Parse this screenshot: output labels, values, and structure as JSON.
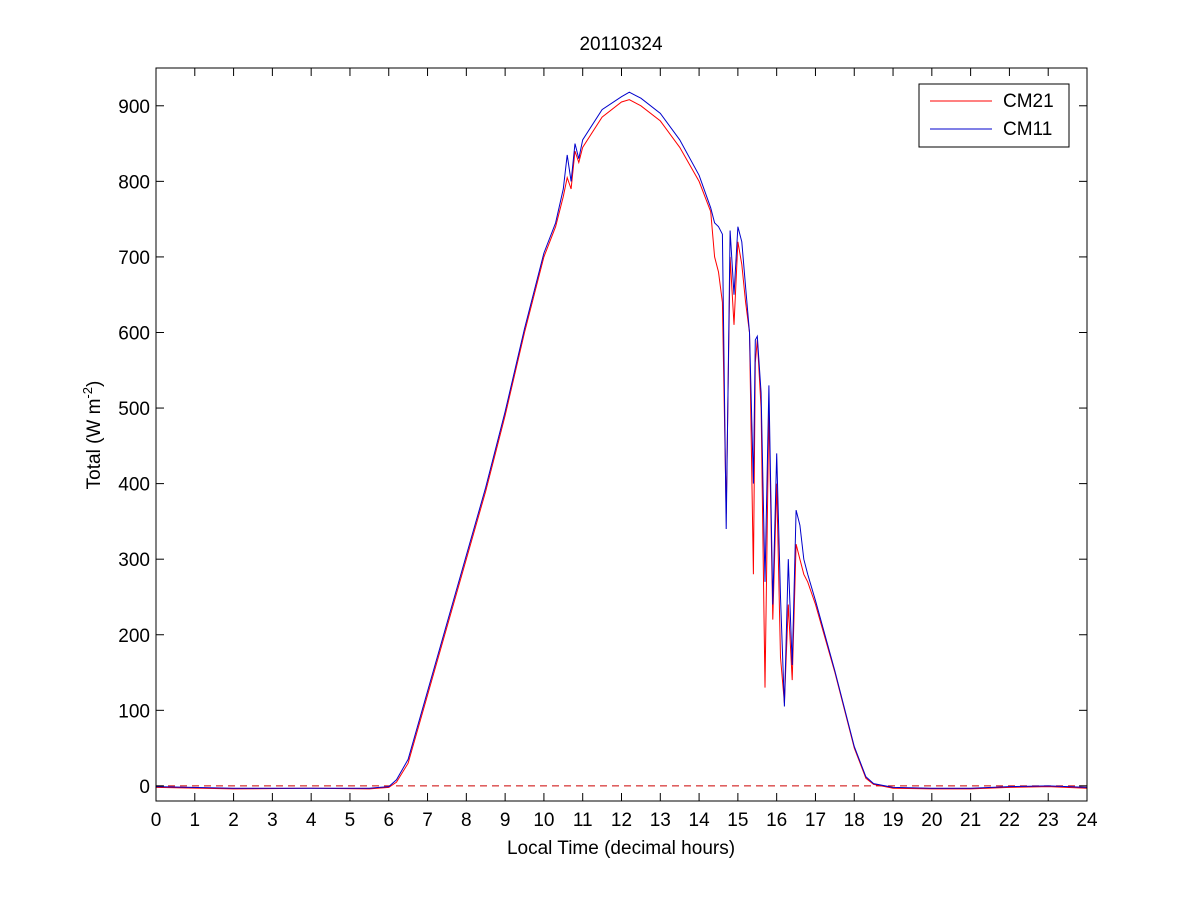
{
  "chart_data": {
    "type": "line",
    "title": "20110324",
    "xlabel": "Local Time (decimal hours)",
    "ylabel": {
      "prefix": "Total (W m",
      "exponent": "-2",
      "suffix": ")"
    },
    "xlim": [
      0,
      24
    ],
    "ylim": [
      -20,
      950
    ],
    "xticks": [
      "0",
      "1",
      "2",
      "3",
      "4",
      "5",
      "6",
      "7",
      "8",
      "9",
      "10",
      "11",
      "12",
      "13",
      "14",
      "15",
      "16",
      "17",
      "18",
      "19",
      "20",
      "21",
      "22",
      "23",
      "24"
    ],
    "yticks": [
      "0",
      "100",
      "200",
      "300",
      "400",
      "500",
      "600",
      "700",
      "800",
      "900"
    ],
    "grid": false,
    "legend_position": "top-right",
    "reference_line": {
      "y": 0,
      "style": "dashed",
      "color": "#cc0000"
    },
    "series": [
      {
        "name": "CM21",
        "color": "#ff0000",
        "x": [
          0,
          2,
          4,
          5.5,
          6.0,
          6.2,
          6.5,
          7,
          7.5,
          8,
          8.5,
          9,
          9.5,
          10,
          10.3,
          10.5,
          10.6,
          10.7,
          10.8,
          10.9,
          11,
          11.5,
          12,
          12.2,
          12.5,
          13,
          13.5,
          14,
          14.3,
          14.4,
          14.5,
          14.6,
          14.7,
          14.8,
          14.9,
          15.0,
          15.1,
          15.2,
          15.3,
          15.4,
          15.45,
          15.5,
          15.6,
          15.7,
          15.8,
          15.9,
          16.0,
          16.1,
          16.2,
          16.3,
          16.4,
          16.5,
          16.6,
          16.7,
          16.8,
          17,
          17.5,
          18,
          18.3,
          18.5,
          19,
          20,
          21,
          22,
          23,
          24
        ],
        "y": [
          -2,
          -4,
          -3,
          -4,
          -2,
          5,
          30,
          120,
          210,
          300,
          390,
          490,
          600,
          700,
          740,
          780,
          805,
          790,
          840,
          825,
          845,
          885,
          905,
          908,
          900,
          880,
          845,
          800,
          760,
          700,
          680,
          640,
          360,
          700,
          610,
          720,
          690,
          640,
          600,
          280,
          560,
          590,
          500,
          130,
          500,
          220,
          400,
          170,
          110,
          240,
          140,
          320,
          300,
          280,
          270,
          240,
          150,
          50,
          10,
          2,
          -3,
          -4,
          -4,
          -2,
          -1,
          -3
        ]
      },
      {
        "name": "CM11",
        "color": "#0000cc",
        "x": [
          0,
          2,
          4,
          5.5,
          6.0,
          6.2,
          6.5,
          7,
          7.5,
          8,
          8.5,
          9,
          9.5,
          10,
          10.3,
          10.5,
          10.6,
          10.7,
          10.8,
          10.9,
          11,
          11.5,
          12,
          12.2,
          12.5,
          13,
          13.5,
          14,
          14.3,
          14.4,
          14.5,
          14.6,
          14.7,
          14.8,
          14.9,
          15.0,
          15.1,
          15.2,
          15.3,
          15.4,
          15.45,
          15.5,
          15.6,
          15.7,
          15.8,
          15.9,
          16.0,
          16.1,
          16.2,
          16.3,
          16.4,
          16.5,
          16.6,
          16.7,
          16.8,
          17,
          17.5,
          18,
          18.3,
          18.5,
          19,
          20,
          21,
          22,
          23,
          24
        ],
        "y": [
          -1,
          -3,
          -3,
          -3,
          -1,
          8,
          35,
          125,
          215,
          305,
          395,
          495,
          605,
          705,
          745,
          790,
          835,
          800,
          850,
          830,
          855,
          895,
          912,
          918,
          910,
          890,
          855,
          808,
          765,
          745,
          740,
          730,
          340,
          735,
          650,
          740,
          720,
          660,
          600,
          400,
          590,
          595,
          520,
          270,
          530,
          240,
          440,
          250,
          105,
          300,
          160,
          365,
          345,
          300,
          280,
          245,
          152,
          52,
          12,
          3,
          -2,
          -3,
          -3,
          -1,
          0,
          -2
        ]
      }
    ]
  }
}
